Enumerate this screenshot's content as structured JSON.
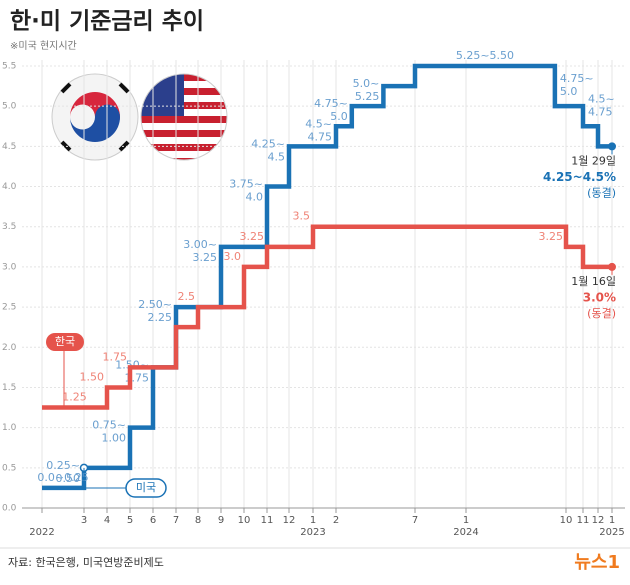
{
  "chart_data": {
    "type": "step",
    "title": "한·미 기준금리 추이",
    "subtitle": "※미국 현지시간",
    "source": "자료: 한국은행, 미국연방준비제도",
    "logo": "뉴스1",
    "ylim": [
      0,
      5.5
    ],
    "yticks": [
      {
        "value": 0,
        "label": "0.0"
      },
      0.5,
      {
        "value": 1,
        "label": "1.0"
      },
      1.5,
      {
        "value": 2,
        "label": "2.0"
      },
      2.5,
      {
        "value": 3,
        "label": "3.0"
      },
      3.5,
      {
        "value": 4,
        "label": "4.0"
      },
      4.5,
      {
        "value": 5,
        "label": "5.0"
      },
      5.5
    ],
    "xticks": [
      {
        "value": "2022-01",
        "label": null
      },
      {
        "value": "2022-03",
        "label": "3"
      },
      {
        "value": "2022-04",
        "label": "4"
      },
      {
        "value": "2022-05",
        "label": "5"
      },
      {
        "value": "2022-06",
        "label": "6"
      },
      {
        "value": "2022-07",
        "label": "7"
      },
      {
        "value": "2022-08",
        "label": "8"
      },
      {
        "value": "2022-09",
        "label": "9"
      },
      {
        "value": "2022-10",
        "label": "10"
      },
      {
        "value": "2022-11",
        "label": "11"
      },
      {
        "value": "2022-12",
        "label": "12"
      },
      {
        "value": "2023-01",
        "label": "1"
      },
      {
        "value": "2023-02",
        "label": "2"
      },
      {
        "value": "2023-07",
        "label": "7"
      },
      {
        "value": "2024-01",
        "label": "1"
      },
      {
        "value": "2024-10",
        "label": "10"
      },
      {
        "value": "2024-11",
        "label": "11"
      },
      {
        "value": "2024-12",
        "label": "12"
      },
      {
        "value": "2025-01",
        "label": "1"
      }
    ],
    "year_labels": [
      {
        "value": "2022-01",
        "label": "2022"
      },
      {
        "value": "2023-01",
        "label": "2023"
      },
      {
        "value": "2024-01",
        "label": "2024"
      },
      {
        "value": "2025-01",
        "label": "2025"
      }
    ],
    "grid": true,
    "series": [
      {
        "name": "미국",
        "color": "#1a72b5",
        "label_color": "#6a9fcf",
        "x": [
          "2022-01",
          "2022-03",
          "2022-05",
          "2022-06",
          "2022-07",
          "2022-09",
          "2022-11",
          "2022-12",
          "2023-02",
          "2023-03",
          "2023-05",
          "2023-07",
          "2024-09",
          "2024-11",
          "2024-12",
          "2025-01"
        ],
        "values": [
          0.25,
          0.5,
          1.0,
          1.75,
          2.5,
          3.25,
          4.0,
          4.5,
          4.75,
          5.0,
          5.25,
          5.5,
          5.0,
          4.75,
          4.5,
          4.5
        ],
        "value_labels": [
          [
            "0.0~0.25"
          ],
          [
            "0.25~",
            "0.50"
          ],
          [
            "0.75~",
            "1.00"
          ],
          [
            "1.50~",
            "1.75"
          ],
          [
            "2.50~",
            "2.25"
          ],
          [
            "3.00~",
            "3.25"
          ],
          [
            "3.75~",
            "4.0"
          ],
          [
            "4.25~",
            "4.5"
          ],
          [
            "4.5~",
            "4.75"
          ],
          [
            "4.75~",
            "5.0"
          ],
          [
            "5.0~",
            "5.25"
          ],
          [
            "5.25~5.50"
          ],
          [
            "4.75~",
            "5.0"
          ],
          [
            "4.5~",
            "4.75"
          ],
          null,
          null
        ],
        "annotation": [
          "1월 29일",
          "4.25~4.5%",
          "(동결)"
        ]
      },
      {
        "name": "한국",
        "color": "#e5534b",
        "label_color": "#ef8376",
        "x": [
          "2022-01",
          "2022-04",
          "2022-05",
          "2022-07",
          "2022-08",
          "2022-10",
          "2022-11",
          "2023-01",
          "2024-10",
          "2024-11",
          "2025-01"
        ],
        "values": [
          1.25,
          1.5,
          1.75,
          2.25,
          2.5,
          3.0,
          3.25,
          3.5,
          3.25,
          3.0,
          3.0
        ],
        "value_labels": [
          [
            "1.25"
          ],
          [
            "1.50"
          ],
          [
            "1.75"
          ],
          null,
          [
            "2.5"
          ],
          [
            "3.0"
          ],
          [
            "3.25"
          ],
          [
            "3.5"
          ],
          [
            "3.25"
          ],
          null,
          null
        ],
        "annotation": [
          "1월 16일",
          "3.0%",
          "(동결)"
        ]
      }
    ]
  }
}
